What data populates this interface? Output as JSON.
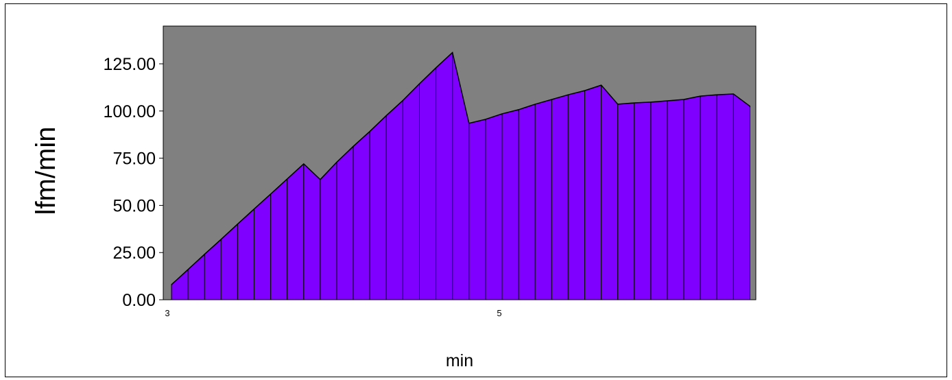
{
  "chart_data": {
    "type": "area",
    "title": "",
    "xlabel": "min",
    "ylabel": "lfm/min",
    "x_tick_labels": [
      "3",
      "5"
    ],
    "ylim": [
      0,
      145
    ],
    "y_ticks": [
      0,
      25,
      50,
      75,
      100,
      125
    ],
    "y_tick_labels": [
      "0.00",
      "25.00",
      "50.00",
      "75.00",
      "100.00",
      "125.00"
    ],
    "grid": false,
    "legend": "none",
    "series": [
      {
        "values": [
          8.0,
          16.0,
          24.1,
          32.0,
          40.1,
          48.1,
          56.0,
          64.0,
          72.0,
          63.7,
          72.9,
          81.3,
          89.2,
          97.6,
          105.6,
          114.4,
          122.9,
          131.0,
          93.5,
          95.6,
          98.5,
          100.7,
          103.6,
          106.1,
          108.6,
          110.8,
          113.7,
          103.6,
          104.3,
          104.7,
          105.4,
          106.1,
          107.9,
          108.6,
          109.0,
          102.5
        ]
      }
    ],
    "colors": {
      "plot_background": "#808080",
      "area_fill": "#8000ff",
      "outline": "#000000"
    }
  }
}
